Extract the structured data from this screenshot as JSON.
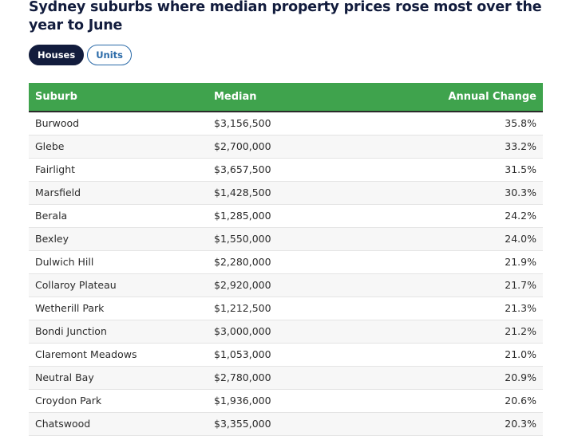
{
  "title": "Sydney suburbs where median property prices rose most over the year to June",
  "tabs": [
    {
      "label": "Houses",
      "active": true
    },
    {
      "label": "Units",
      "active": false
    }
  ],
  "table": {
    "headers": [
      "Suburb",
      "Median",
      "Annual Change"
    ],
    "rows": [
      {
        "suburb": "Burwood",
        "median": "$3,156,500",
        "change": "35.8%"
      },
      {
        "suburb": "Glebe",
        "median": "$2,700,000",
        "change": "33.2%"
      },
      {
        "suburb": "Fairlight",
        "median": "$3,657,500",
        "change": "31.5%"
      },
      {
        "suburb": "Marsfield",
        "median": "$1,428,500",
        "change": "30.3%"
      },
      {
        "suburb": "Berala",
        "median": "$1,285,000",
        "change": "24.2%"
      },
      {
        "suburb": "Bexley",
        "median": "$1,550,000",
        "change": "24.0%"
      },
      {
        "suburb": "Dulwich Hill",
        "median": "$2,280,000",
        "change": "21.9%"
      },
      {
        "suburb": "Collaroy Plateau",
        "median": "$2,920,000",
        "change": "21.7%"
      },
      {
        "suburb": "Wetherill Park",
        "median": "$1,212,500",
        "change": "21.3%"
      },
      {
        "suburb": "Bondi Junction",
        "median": "$3,000,000",
        "change": "21.2%"
      },
      {
        "suburb": "Claremont Meadows",
        "median": "$1,053,000",
        "change": "21.0%"
      },
      {
        "suburb": "Neutral Bay",
        "median": "$2,780,000",
        "change": "20.9%"
      },
      {
        "suburb": "Croydon Park",
        "median": "$1,936,000",
        "change": "20.6%"
      },
      {
        "suburb": "Chatswood",
        "median": "$3,355,000",
        "change": "20.3%"
      }
    ]
  },
  "colors": {
    "header_green": "#3fa34d",
    "title_navy": "#121c3d",
    "tab_outline_blue": "#2a6aa8"
  }
}
